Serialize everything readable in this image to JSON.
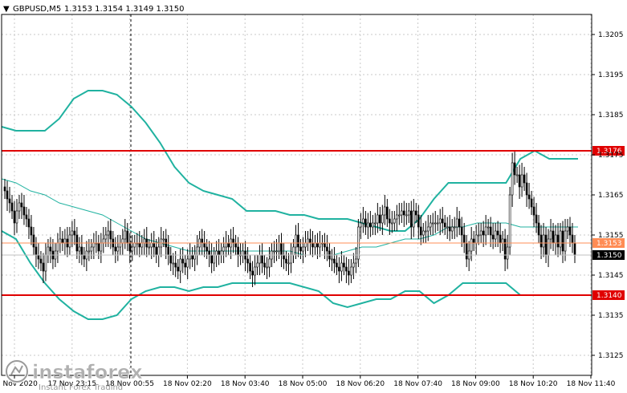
{
  "header": {
    "symbol": "GBPUSD,M5",
    "ohlc": "1.3153 1.3154 1.3149 1.3150"
  },
  "logo": {
    "brand": "instaforex",
    "tagline": "Instant Forex Trading"
  },
  "colors": {
    "level_line": "#e00000",
    "band": "#20b2a0",
    "ma": "#20b2a0",
    "candle": "#000000",
    "bid_label_bg": "#ff8c55",
    "current_label_bg": "#000000"
  },
  "chart_data": {
    "type": "candlestick",
    "ylim": [
      1.312,
      1.321
    ],
    "y_ticks": [
      1.3205,
      1.3195,
      1.3185,
      1.3175,
      1.3165,
      1.3155,
      1.3145,
      1.3135,
      1.3125
    ],
    "x_ticks": [
      "17 Nov 2020",
      "17 Nov 23:15",
      "18 Nov 00:55",
      "18 Nov 02:20",
      "18 Nov 03:40",
      "18 Nov 05:00",
      "18 Nov 06:20",
      "18 Nov 07:40",
      "18 Nov 09:00",
      "18 Nov 10:20",
      "18 Nov 11:40"
    ],
    "levels": [
      {
        "value": 1.3176,
        "label": "1.3176"
      },
      {
        "value": 1.314,
        "label": "1.3140"
      }
    ],
    "bid": {
      "value": 1.3153,
      "label": "1.3153"
    },
    "current": {
      "value": 1.315,
      "label": "1.3150"
    },
    "upper_band": [
      1.3182,
      1.3181,
      1.3181,
      1.3181,
      1.3184,
      1.3189,
      1.3191,
      1.3191,
      1.319,
      1.3187,
      1.3183,
      1.3178,
      1.3172,
      1.3168,
      1.3166,
      1.3165,
      1.3164,
      1.3161,
      1.3161,
      1.3161,
      1.316,
      1.316,
      1.3159,
      1.3159,
      1.3159,
      1.3158,
      1.3157,
      1.3156,
      1.3156,
      1.3159,
      1.3164,
      1.3168,
      1.3168,
      1.3168,
      1.3168,
      1.3168,
      1.3174,
      1.3176,
      1.3174,
      1.3174,
      1.3174
    ],
    "lower_band": [
      1.3156,
      1.3154,
      1.3148,
      1.3143,
      1.3139,
      1.3136,
      1.3134,
      1.3134,
      1.3135,
      1.3139,
      1.3141,
      1.3142,
      1.3142,
      1.3141,
      1.3142,
      1.3142,
      1.3143,
      1.3143,
      1.3143,
      1.3143,
      1.3143,
      1.3142,
      1.3141,
      1.3138,
      1.3137,
      1.3138,
      1.3139,
      1.3139,
      1.3141,
      1.3141,
      1.3138,
      1.314,
      1.3143,
      1.3143,
      1.3143,
      1.3143,
      1.314,
      1.314,
      1.314,
      1.314,
      1.314
    ],
    "ma": [
      1.3169,
      1.3168,
      1.3166,
      1.3165,
      1.3163,
      1.3162,
      1.3161,
      1.316,
      1.3158,
      1.3156,
      1.3154,
      1.3153,
      1.3152,
      1.3151,
      1.3151,
      1.3151,
      1.3151,
      1.3151,
      1.3151,
      1.3151,
      1.3151,
      1.315,
      1.315,
      1.315,
      1.3151,
      1.3152,
      1.3152,
      1.3153,
      1.3154,
      1.3154,
      1.3155,
      1.3157,
      1.3157,
      1.3158,
      1.3158,
      1.3158,
      1.3157,
      1.3157,
      1.3157,
      1.3157,
      1.3157
    ],
    "closes": [
      1.3166,
      1.3164,
      1.3163,
      1.3161,
      1.3158,
      1.3161,
      1.3163,
      1.3162,
      1.316,
      1.3159,
      1.3157,
      1.3155,
      1.3152,
      1.315,
      1.3149,
      1.3148,
      1.3146,
      1.315,
      1.3152,
      1.3151,
      1.3149,
      1.3151,
      1.3153,
      1.3154,
      1.3153,
      1.3154,
      1.3152,
      1.3155,
      1.3156,
      1.3155,
      1.3151,
      1.3152,
      1.315,
      1.3149,
      1.3151,
      1.3151,
      1.3152,
      1.3153,
      1.3153,
      1.3151,
      1.3153,
      1.3154,
      1.3155,
      1.3156,
      1.3154,
      1.3152,
      1.3151,
      1.3152,
      1.3153,
      1.3154,
      1.3156,
      1.3153,
      1.3151,
      1.3152,
      1.3153,
      1.3153,
      1.3152,
      1.3153,
      1.3154,
      1.3152,
      1.3152,
      1.3153,
      1.3152,
      1.315,
      1.3152,
      1.3154,
      1.3154,
      1.3152,
      1.315,
      1.3148,
      1.3148,
      1.3147,
      1.3146,
      1.3149,
      1.3148,
      1.3147,
      1.3149,
      1.315,
      1.3149,
      1.315,
      1.3152,
      1.3154,
      1.3153,
      1.3152,
      1.3151,
      1.315,
      1.3148,
      1.315,
      1.3151,
      1.315,
      1.3151,
      1.3152,
      1.3153,
      1.3152,
      1.3154,
      1.3153,
      1.3152,
      1.315,
      1.315,
      1.3151,
      1.3149,
      1.3148,
      1.3146,
      1.3145,
      1.3147,
      1.3148,
      1.315,
      1.3148,
      1.3147,
      1.3147,
      1.3149,
      1.3151,
      1.3151,
      1.3151,
      1.3153,
      1.315,
      1.3149,
      1.3148,
      1.3148,
      1.315,
      1.3152,
      1.3155,
      1.3152,
      1.3151,
      1.3152,
      1.3153,
      1.3154,
      1.3153,
      1.3152,
      1.3153,
      1.3152,
      1.3153,
      1.3153,
      1.3152,
      1.3151,
      1.3149,
      1.3149,
      1.3148,
      1.3147,
      1.3146,
      1.3148,
      1.3147,
      1.3146,
      1.3145,
      1.3147,
      1.3148,
      1.3149,
      1.3157,
      1.3158,
      1.3159,
      1.3157,
      1.3158,
      1.3157,
      1.3158,
      1.3158,
      1.316,
      1.3158,
      1.316,
      1.3162,
      1.3159,
      1.3158,
      1.3158,
      1.3159,
      1.316,
      1.316,
      1.3161,
      1.316,
      1.316,
      1.3161,
      1.3157,
      1.3161,
      1.316,
      1.3157,
      1.3155,
      1.3156,
      1.3156,
      1.3157,
      1.3158,
      1.3158,
      1.3158,
      1.3158,
      1.3159,
      1.3158,
      1.3157,
      1.3157,
      1.3156,
      1.3157,
      1.3157,
      1.3159,
      1.3157,
      1.3155,
      1.3153,
      1.3149,
      1.3151,
      1.3154,
      1.3153,
      1.3155,
      1.3155,
      1.3156,
      1.3155,
      1.3157,
      1.3157,
      1.3155,
      1.3154,
      1.3156,
      1.3155,
      1.3153,
      1.3154,
      1.3149,
      1.3152,
      1.3165,
      1.3173,
      1.317,
      1.317,
      1.3167,
      1.317,
      1.3168,
      1.3165,
      1.3164,
      1.3162,
      1.316,
      1.3158,
      1.3155,
      1.3152,
      1.3155,
      1.315,
      1.3154,
      1.3156,
      1.3153,
      1.3155,
      1.3152,
      1.3156,
      1.3151,
      1.3156,
      1.3157,
      1.3155,
      1.3153,
      1.315
    ]
  }
}
